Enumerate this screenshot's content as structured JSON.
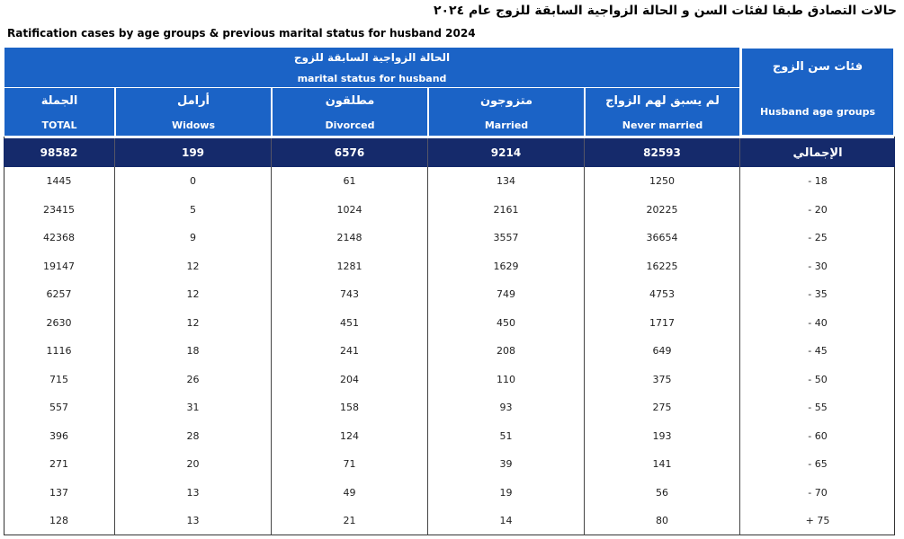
{
  "header": {
    "title_ar": "حالات التصادق طبقا لفئات السن و الحالة الزواجية السابقة للزوج  عام ٢٠٢٤",
    "title_en": "Ratification cases by age groups & previous marital status for husband 2024"
  },
  "table": {
    "group_header": {
      "ar": "الحالة الزواجية السابقة للزوج",
      "en": "marital status for husband"
    },
    "age_header": {
      "ar": "فئات سن الزوج",
      "en": "Husband age groups"
    },
    "columns": [
      {
        "ar": "الجملة",
        "en": "TOTAL"
      },
      {
        "ar": "أرامل",
        "en": "Widows"
      },
      {
        "ar": "مطلقون",
        "en": "Divorced"
      },
      {
        "ar": "متزوجون",
        "en": "Married"
      },
      {
        "ar": "لم يسبق لهم الزواج",
        "en": "Never married"
      }
    ],
    "total_row": {
      "label": "الإجمالي",
      "values": [
        98582,
        199,
        6576,
        9214,
        82593
      ]
    },
    "rows": [
      {
        "age": "18 -",
        "values": [
          1445,
          0,
          61,
          134,
          1250
        ]
      },
      {
        "age": "20 -",
        "values": [
          23415,
          5,
          1024,
          2161,
          20225
        ]
      },
      {
        "age": "25 -",
        "values": [
          42368,
          9,
          2148,
          3557,
          36654
        ]
      },
      {
        "age": "30 -",
        "values": [
          19147,
          12,
          1281,
          1629,
          16225
        ]
      },
      {
        "age": "35 -",
        "values": [
          6257,
          12,
          743,
          749,
          4753
        ]
      },
      {
        "age": "40 -",
        "values": [
          2630,
          12,
          451,
          450,
          1717
        ]
      },
      {
        "age": "45 -",
        "values": [
          1116,
          18,
          241,
          208,
          649
        ]
      },
      {
        "age": "50 -",
        "values": [
          715,
          26,
          204,
          110,
          375
        ]
      },
      {
        "age": "55 -",
        "values": [
          557,
          31,
          158,
          93,
          275
        ]
      },
      {
        "age": "60 -",
        "values": [
          396,
          28,
          124,
          51,
          193
        ]
      },
      {
        "age": "65 -",
        "values": [
          271,
          20,
          71,
          39,
          141
        ]
      },
      {
        "age": "70 -",
        "values": [
          137,
          13,
          49,
          19,
          56
        ]
      },
      {
        "age": "75 +",
        "values": [
          128,
          13,
          21,
          14,
          80
        ]
      }
    ]
  }
}
